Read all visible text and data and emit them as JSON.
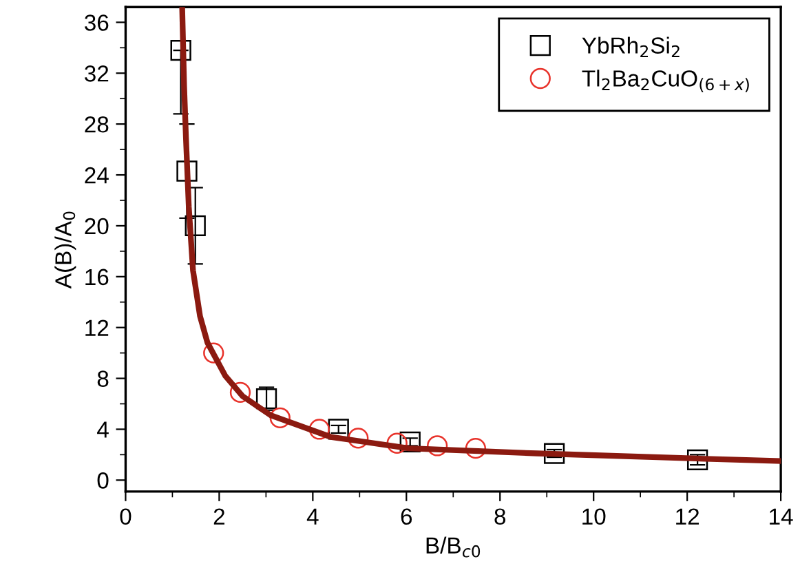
{
  "chart_data": {
    "type": "scatter",
    "xlabel": "B/B$_{c0}$",
    "ylabel": "A(B)/A$_{0}$",
    "xlim": [
      0,
      14
    ],
    "xticks": [
      0,
      2,
      4,
      6,
      8,
      10,
      12,
      14
    ],
    "ylim": [
      -0.9,
      37.2
    ],
    "yticks": [
      0,
      4,
      8,
      12,
      16,
      20,
      24,
      28,
      32,
      36
    ],
    "grid": false,
    "legend": "top right",
    "series": [
      {
        "name": "YbRh$_{2}$Si$_{2}$",
        "marker": "square",
        "color": "#000000",
        "x": [
          1.18,
          1.31,
          1.49,
          3.01,
          4.55,
          6.08,
          9.16,
          12.22
        ],
        "values": [
          33.8,
          24.3,
          20.0,
          6.4,
          4.0,
          3.0,
          2.1,
          1.6
        ],
        "errors": [
          [
            28.8,
            33.8
          ],
          3.7,
          3.0,
          0.9,
          0.3,
          0.3,
          0.3,
          0.4
        ]
      },
      {
        "name": "Tl$_{2}$Ba$_{2}$CuO$_{(6+x)}$",
        "marker": "circle",
        "color": "#e8322a",
        "x": [
          1.88,
          2.45,
          3.3,
          4.14,
          4.97,
          5.8,
          6.66,
          7.48
        ],
        "values": [
          10.0,
          6.9,
          4.9,
          4.0,
          3.3,
          2.9,
          2.7,
          2.5
        ]
      },
      {
        "type": "line",
        "color": "#8b1a10",
        "x": [
          1.21,
          1.25,
          1.29,
          1.35,
          1.44,
          1.59,
          1.75,
          2.13,
          2.5,
          3.1,
          4.38,
          6.05,
          8.79,
          12.2,
          14
        ],
        "values": [
          37.0,
          31.0,
          26.9,
          21.5,
          16.5,
          12.9,
          10.8,
          8.2,
          6.6,
          5.1,
          3.4,
          2.5,
          2.1,
          1.7,
          1.5
        ]
      }
    ]
  }
}
